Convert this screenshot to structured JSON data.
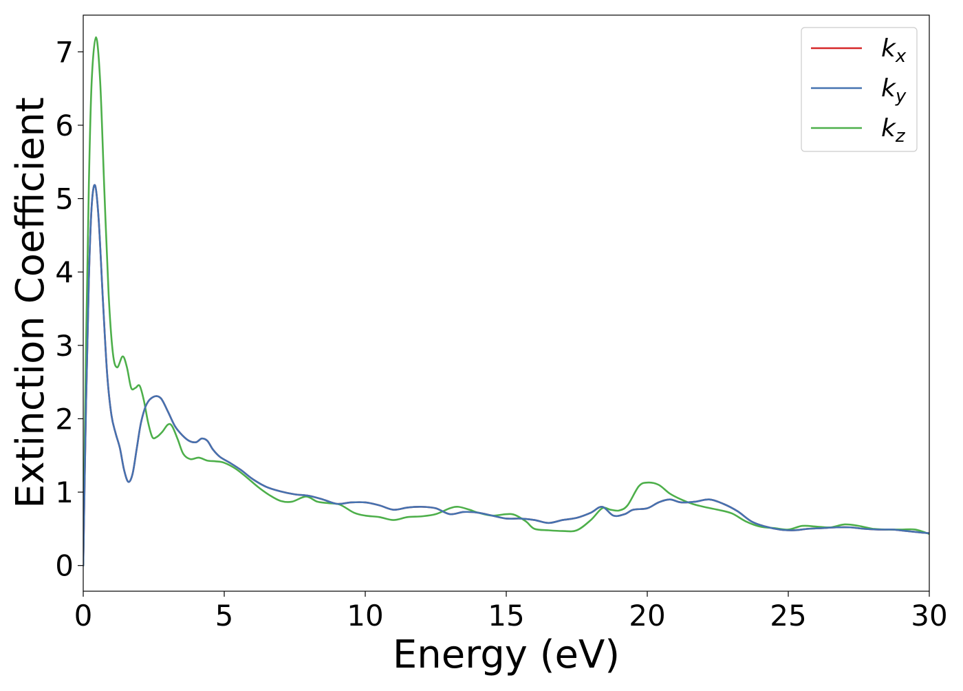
{
  "chart_data": {
    "type": "line",
    "title": "",
    "xlabel": "Energy (eV)",
    "ylabel": "Extinction Coefficient",
    "xlim": [
      0,
      30
    ],
    "ylim": [
      -0.35,
      7.5
    ],
    "xticks": [
      0,
      5,
      10,
      15,
      20,
      25,
      30
    ],
    "xtick_labels": [
      "0",
      "5",
      "10",
      "15",
      "20",
      "25",
      "30"
    ],
    "yticks": [
      0,
      1,
      2,
      3,
      4,
      5,
      6,
      7
    ],
    "ytick_labels": [
      "0",
      "1",
      "2",
      "3",
      "4",
      "5",
      "6",
      "7"
    ],
    "grid": false,
    "legend_position": "top-right",
    "series": [
      {
        "name": "k_x",
        "label_base": "k",
        "label_sub": "x",
        "color": "#d62728",
        "points": [
          [
            0,
            0
          ],
          [
            0.1,
            2.2
          ],
          [
            0.2,
            3.9
          ],
          [
            0.3,
            4.9
          ],
          [
            0.42,
            5.18
          ],
          [
            0.55,
            4.7
          ],
          [
            0.7,
            3.6
          ],
          [
            0.85,
            2.6
          ],
          [
            1.0,
            2.05
          ],
          [
            1.15,
            1.8
          ],
          [
            1.3,
            1.6
          ],
          [
            1.45,
            1.3
          ],
          [
            1.6,
            1.14
          ],
          [
            1.75,
            1.25
          ],
          [
            1.9,
            1.6
          ],
          [
            2.05,
            1.95
          ],
          [
            2.25,
            2.2
          ],
          [
            2.5,
            2.3
          ],
          [
            2.75,
            2.28
          ],
          [
            3.0,
            2.1
          ],
          [
            3.25,
            1.9
          ],
          [
            3.5,
            1.78
          ],
          [
            3.75,
            1.7
          ],
          [
            4.0,
            1.68
          ],
          [
            4.2,
            1.73
          ],
          [
            4.4,
            1.7
          ],
          [
            4.6,
            1.58
          ],
          [
            4.85,
            1.48
          ],
          [
            5.2,
            1.4
          ],
          [
            5.6,
            1.3
          ],
          [
            6.0,
            1.18
          ],
          [
            6.5,
            1.07
          ],
          [
            7.0,
            1.01
          ],
          [
            7.5,
            0.97
          ],
          [
            8.0,
            0.95
          ],
          [
            8.5,
            0.9
          ],
          [
            9.0,
            0.84
          ],
          [
            9.5,
            0.86
          ],
          [
            10.0,
            0.86
          ],
          [
            10.5,
            0.82
          ],
          [
            11.0,
            0.76
          ],
          [
            11.5,
            0.79
          ],
          [
            12.0,
            0.8
          ],
          [
            12.5,
            0.78
          ],
          [
            13.0,
            0.7
          ],
          [
            13.5,
            0.73
          ],
          [
            14.0,
            0.72
          ],
          [
            14.5,
            0.68
          ],
          [
            15.0,
            0.64
          ],
          [
            15.5,
            0.64
          ],
          [
            16.0,
            0.62
          ],
          [
            16.5,
            0.58
          ],
          [
            17.0,
            0.62
          ],
          [
            17.5,
            0.65
          ],
          [
            18.0,
            0.72
          ],
          [
            18.4,
            0.8
          ],
          [
            18.8,
            0.68
          ],
          [
            19.2,
            0.7
          ],
          [
            19.5,
            0.76
          ],
          [
            20.0,
            0.78
          ],
          [
            20.4,
            0.86
          ],
          [
            20.8,
            0.9
          ],
          [
            21.2,
            0.86
          ],
          [
            21.7,
            0.87
          ],
          [
            22.2,
            0.9
          ],
          [
            22.7,
            0.84
          ],
          [
            23.2,
            0.74
          ],
          [
            23.7,
            0.6
          ],
          [
            24.2,
            0.53
          ],
          [
            24.7,
            0.49
          ],
          [
            25.2,
            0.48
          ],
          [
            25.7,
            0.5
          ],
          [
            26.2,
            0.51
          ],
          [
            26.7,
            0.52
          ],
          [
            27.2,
            0.52
          ],
          [
            27.7,
            0.5
          ],
          [
            28.2,
            0.49
          ],
          [
            28.7,
            0.49
          ],
          [
            29.2,
            0.47
          ],
          [
            29.7,
            0.45
          ],
          [
            30.0,
            0.44
          ]
        ]
      },
      {
        "name": "k_y",
        "label_base": "k",
        "label_sub": "y",
        "color": "#4472b0",
        "points": [
          [
            0,
            0
          ],
          [
            0.1,
            2.2
          ],
          [
            0.2,
            3.9
          ],
          [
            0.3,
            4.9
          ],
          [
            0.42,
            5.18
          ],
          [
            0.55,
            4.7
          ],
          [
            0.7,
            3.6
          ],
          [
            0.85,
            2.6
          ],
          [
            1.0,
            2.05
          ],
          [
            1.15,
            1.8
          ],
          [
            1.3,
            1.6
          ],
          [
            1.45,
            1.3
          ],
          [
            1.6,
            1.14
          ],
          [
            1.75,
            1.25
          ],
          [
            1.9,
            1.6
          ],
          [
            2.05,
            1.95
          ],
          [
            2.25,
            2.2
          ],
          [
            2.5,
            2.3
          ],
          [
            2.75,
            2.28
          ],
          [
            3.0,
            2.1
          ],
          [
            3.25,
            1.9
          ],
          [
            3.5,
            1.78
          ],
          [
            3.75,
            1.7
          ],
          [
            4.0,
            1.68
          ],
          [
            4.2,
            1.73
          ],
          [
            4.4,
            1.7
          ],
          [
            4.6,
            1.58
          ],
          [
            4.85,
            1.48
          ],
          [
            5.2,
            1.4
          ],
          [
            5.6,
            1.3
          ],
          [
            6.0,
            1.18
          ],
          [
            6.5,
            1.07
          ],
          [
            7.0,
            1.01
          ],
          [
            7.5,
            0.97
          ],
          [
            8.0,
            0.95
          ],
          [
            8.5,
            0.9
          ],
          [
            9.0,
            0.84
          ],
          [
            9.5,
            0.86
          ],
          [
            10.0,
            0.86
          ],
          [
            10.5,
            0.82
          ],
          [
            11.0,
            0.76
          ],
          [
            11.5,
            0.79
          ],
          [
            12.0,
            0.8
          ],
          [
            12.5,
            0.78
          ],
          [
            13.0,
            0.7
          ],
          [
            13.5,
            0.73
          ],
          [
            14.0,
            0.72
          ],
          [
            14.5,
            0.68
          ],
          [
            15.0,
            0.64
          ],
          [
            15.5,
            0.64
          ],
          [
            16.0,
            0.62
          ],
          [
            16.5,
            0.58
          ],
          [
            17.0,
            0.62
          ],
          [
            17.5,
            0.65
          ],
          [
            18.0,
            0.72
          ],
          [
            18.4,
            0.8
          ],
          [
            18.8,
            0.68
          ],
          [
            19.2,
            0.7
          ],
          [
            19.5,
            0.76
          ],
          [
            20.0,
            0.78
          ],
          [
            20.4,
            0.86
          ],
          [
            20.8,
            0.9
          ],
          [
            21.2,
            0.86
          ],
          [
            21.7,
            0.87
          ],
          [
            22.2,
            0.9
          ],
          [
            22.7,
            0.84
          ],
          [
            23.2,
            0.74
          ],
          [
            23.7,
            0.6
          ],
          [
            24.2,
            0.53
          ],
          [
            24.7,
            0.49
          ],
          [
            25.2,
            0.48
          ],
          [
            25.7,
            0.5
          ],
          [
            26.2,
            0.51
          ],
          [
            26.7,
            0.52
          ],
          [
            27.2,
            0.52
          ],
          [
            27.7,
            0.5
          ],
          [
            28.2,
            0.49
          ],
          [
            28.7,
            0.49
          ],
          [
            29.2,
            0.47
          ],
          [
            29.7,
            0.45
          ],
          [
            30.0,
            0.44
          ]
        ]
      },
      {
        "name": "k_z",
        "label_base": "k",
        "label_sub": "z",
        "color": "#4daf4a",
        "points": [
          [
            0,
            0
          ],
          [
            0.1,
            3.0
          ],
          [
            0.2,
            5.2
          ],
          [
            0.3,
            6.6
          ],
          [
            0.45,
            7.2
          ],
          [
            0.6,
            6.6
          ],
          [
            0.75,
            5.1
          ],
          [
            0.9,
            3.7
          ],
          [
            1.05,
            2.9
          ],
          [
            1.2,
            2.7
          ],
          [
            1.4,
            2.85
          ],
          [
            1.55,
            2.7
          ],
          [
            1.7,
            2.42
          ],
          [
            1.85,
            2.42
          ],
          [
            2.0,
            2.45
          ],
          [
            2.15,
            2.25
          ],
          [
            2.3,
            1.95
          ],
          [
            2.45,
            1.75
          ],
          [
            2.6,
            1.75
          ],
          [
            2.8,
            1.82
          ],
          [
            3.0,
            1.92
          ],
          [
            3.15,
            1.9
          ],
          [
            3.35,
            1.72
          ],
          [
            3.55,
            1.52
          ],
          [
            3.8,
            1.45
          ],
          [
            4.1,
            1.47
          ],
          [
            4.4,
            1.43
          ],
          [
            4.7,
            1.42
          ],
          [
            5.0,
            1.4
          ],
          [
            5.4,
            1.32
          ],
          [
            5.8,
            1.2
          ],
          [
            6.2,
            1.07
          ],
          [
            6.6,
            0.96
          ],
          [
            7.0,
            0.88
          ],
          [
            7.4,
            0.87
          ],
          [
            7.9,
            0.94
          ],
          [
            8.3,
            0.87
          ],
          [
            8.7,
            0.85
          ],
          [
            9.1,
            0.83
          ],
          [
            9.6,
            0.72
          ],
          [
            10.0,
            0.68
          ],
          [
            10.5,
            0.66
          ],
          [
            11.0,
            0.62
          ],
          [
            11.5,
            0.66
          ],
          [
            12.0,
            0.67
          ],
          [
            12.5,
            0.7
          ],
          [
            13.0,
            0.78
          ],
          [
            13.3,
            0.8
          ],
          [
            13.7,
            0.76
          ],
          [
            14.0,
            0.72
          ],
          [
            14.5,
            0.68
          ],
          [
            15.0,
            0.7
          ],
          [
            15.3,
            0.69
          ],
          [
            15.7,
            0.6
          ],
          [
            16.0,
            0.5
          ],
          [
            16.5,
            0.48
          ],
          [
            17.0,
            0.47
          ],
          [
            17.5,
            0.48
          ],
          [
            18.0,
            0.62
          ],
          [
            18.4,
            0.78
          ],
          [
            18.7,
            0.76
          ],
          [
            19.0,
            0.75
          ],
          [
            19.3,
            0.82
          ],
          [
            19.7,
            1.08
          ],
          [
            20.0,
            1.13
          ],
          [
            20.4,
            1.1
          ],
          [
            20.8,
            0.98
          ],
          [
            21.2,
            0.9
          ],
          [
            21.6,
            0.84
          ],
          [
            22.0,
            0.8
          ],
          [
            22.5,
            0.76
          ],
          [
            23.0,
            0.71
          ],
          [
            23.5,
            0.6
          ],
          [
            24.0,
            0.53
          ],
          [
            24.5,
            0.51
          ],
          [
            25.0,
            0.49
          ],
          [
            25.5,
            0.54
          ],
          [
            26.0,
            0.53
          ],
          [
            26.5,
            0.52
          ],
          [
            27.0,
            0.56
          ],
          [
            27.5,
            0.54
          ],
          [
            28.0,
            0.5
          ],
          [
            28.5,
            0.49
          ],
          [
            29.0,
            0.49
          ],
          [
            29.5,
            0.49
          ],
          [
            30.0,
            0.43
          ]
        ]
      }
    ]
  }
}
